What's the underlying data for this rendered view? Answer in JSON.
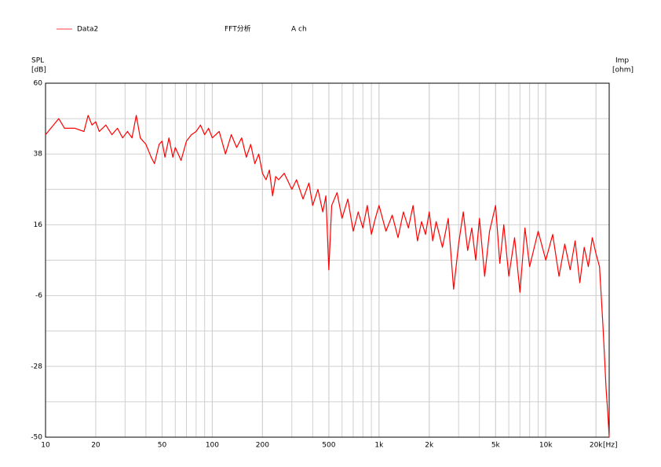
{
  "chart_data": {
    "type": "line",
    "title": "FFT分析",
    "subtitle": "A ch",
    "y_label": "SPL",
    "y_unit": "[dB]",
    "y2_label": "Imp",
    "y2_unit": "[ohm]",
    "x_unit": "[Hz]",
    "log_x": true,
    "grid": true,
    "xlim": [
      10,
      24000
    ],
    "ylim": [
      -50,
      60
    ],
    "xticks": [
      10,
      20,
      50,
      100,
      200,
      500,
      {
        "value": 1000,
        "label": "1k"
      },
      {
        "value": 2000,
        "label": "2k"
      },
      {
        "value": 5000,
        "label": "5k"
      },
      {
        "value": 10000,
        "label": "10k"
      },
      {
        "value": 20000,
        "label": "20k"
      }
    ],
    "yticks": [
      -50,
      -28,
      -6,
      16,
      38,
      60
    ],
    "x": [
      10,
      12,
      13,
      15,
      17,
      18,
      19,
      20,
      21,
      23,
      25,
      27,
      29,
      31,
      33,
      35,
      37,
      40,
      43,
      45,
      48,
      50,
      52,
      55,
      58,
      60,
      65,
      70,
      75,
      80,
      85,
      90,
      95,
      100,
      110,
      120,
      130,
      140,
      150,
      160,
      170,
      180,
      190,
      200,
      210,
      220,
      230,
      240,
      250,
      270,
      300,
      320,
      350,
      380,
      400,
      430,
      460,
      480,
      500,
      520,
      560,
      600,
      650,
      700,
      750,
      800,
      850,
      900,
      950,
      1000,
      1100,
      1200,
      1300,
      1400,
      1500,
      1600,
      1700,
      1800,
      1900,
      2000,
      2100,
      2200,
      2400,
      2600,
      2800,
      3000,
      3200,
      3400,
      3600,
      3800,
      4000,
      4300,
      4600,
      5000,
      5300,
      5600,
      6000,
      6500,
      7000,
      7500,
      8000,
      9000,
      10000,
      11000,
      12000,
      13000,
      14000,
      15000,
      16000,
      17000,
      18000,
      19000,
      20000,
      21000,
      21500,
      22000,
      22500,
      23000,
      23500,
      24000
    ],
    "series": [
      {
        "name": "Data2",
        "color": "#ff0000",
        "values": [
          44,
          49,
          46,
          46,
          45,
          50,
          47,
          48,
          45,
          47,
          44,
          46,
          43,
          45,
          43,
          50,
          43,
          41,
          37,
          35,
          41,
          42,
          37,
          43,
          37,
          40,
          36,
          42,
          44,
          45,
          47,
          44,
          46,
          43,
          45,
          38,
          44,
          40,
          43,
          37,
          41,
          35,
          38,
          32,
          30,
          33,
          25,
          31,
          30,
          32,
          27,
          30,
          24,
          29,
          22,
          27,
          20,
          25,
          2,
          22,
          26,
          18,
          24,
          14,
          20,
          15,
          22,
          13,
          18,
          22,
          14,
          19,
          12,
          20,
          15,
          22,
          11,
          17,
          13,
          20,
          11,
          17,
          9,
          18,
          -4,
          10,
          20,
          8,
          15,
          5,
          18,
          0,
          14,
          22,
          4,
          16,
          0,
          12,
          -5,
          15,
          3,
          14,
          5,
          13,
          0,
          10,
          2,
          11,
          -2,
          9,
          3,
          12,
          7,
          3,
          -6,
          -15,
          -25,
          -35,
          -42,
          -50
        ]
      }
    ]
  }
}
